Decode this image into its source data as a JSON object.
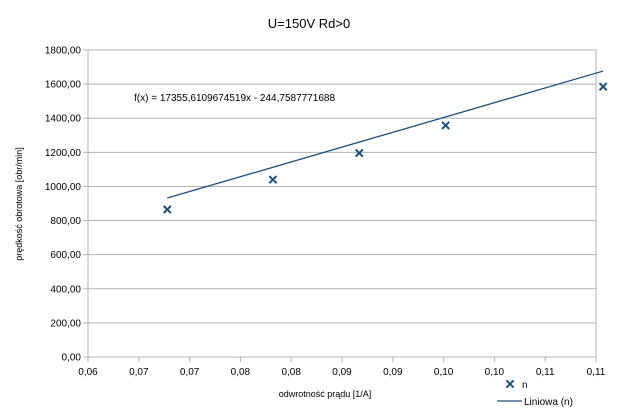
{
  "chart_data": {
    "type": "scatter",
    "title": "U=150V Rd>0",
    "xlabel": "odwrotność prądu [1/A]",
    "ylabel": "prędkość obrotowa [obr/min]",
    "xlim": [
      0.06,
      0.11
    ],
    "ylim": [
      0,
      1800
    ],
    "x_ticks": [
      0.06,
      0.065,
      0.07,
      0.075,
      0.08,
      0.085,
      0.09,
      0.095,
      0.1,
      0.105,
      0.11
    ],
    "x_tick_labels": [
      "0,06",
      "0,07",
      "0,07",
      "0,08",
      "0,08",
      "0,09",
      "0,09",
      "0,10",
      "0,10",
      "0,11",
      "0,11"
    ],
    "y_ticks": [
      0,
      200,
      400,
      600,
      800,
      1000,
      1200,
      1400,
      1600,
      1800
    ],
    "y_tick_labels": [
      "0,00",
      "200,00",
      "400,00",
      "600,00",
      "800,00",
      "1000,00",
      "1200,00",
      "1400,00",
      "1600,00",
      "1800,00"
    ],
    "grid": "horizontal",
    "legend_position": "bottom-right",
    "series": [
      {
        "name": "n",
        "marker": "x",
        "color": "#1f4e79",
        "x": [
          0.0678,
          0.0782,
          0.0867,
          0.0952,
          0.1107
        ],
        "y": [
          865,
          1040,
          1196,
          1358,
          1585
        ]
      }
    ],
    "trendline": {
      "name": "Liniowa (n)",
      "color": "#1f4e79",
      "slope": 17355.6109674519,
      "intercept": -244.7587771688,
      "x_range": [
        0.0678,
        0.1107
      ],
      "equation": "f(x) = 17355,6109674519x - 244,7587771688"
    }
  }
}
